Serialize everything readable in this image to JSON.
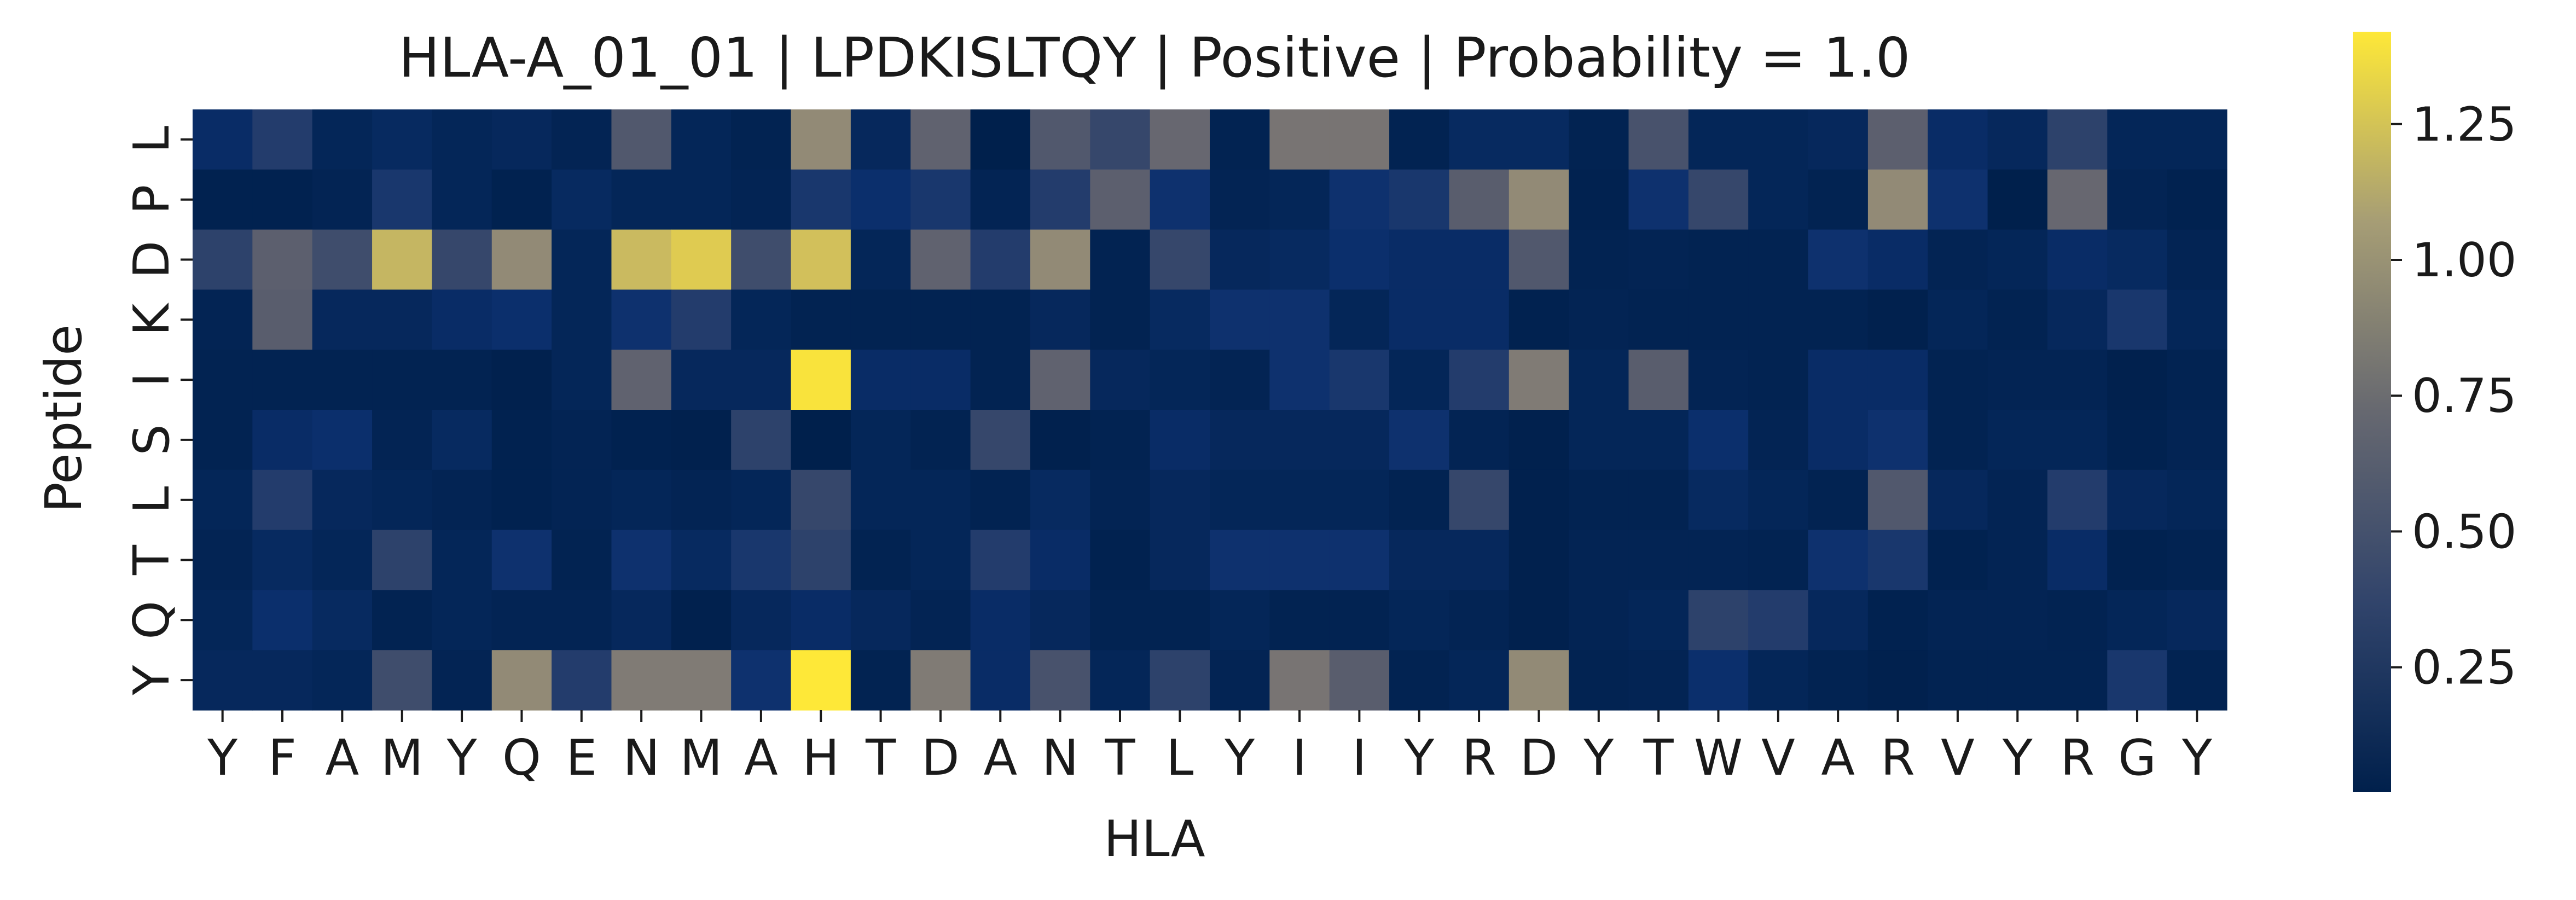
{
  "chart_data": {
    "type": "heatmap",
    "title": "HLA-A_01_01 | LPDKISLTQY | Positive | Probability = 1.0",
    "xlabel": "HLA",
    "ylabel": "Peptide",
    "x_categories": [
      "Y",
      "F",
      "A",
      "M",
      "Y",
      "Q",
      "E",
      "N",
      "M",
      "A",
      "H",
      "T",
      "D",
      "A",
      "N",
      "T",
      "L",
      "Y",
      "I",
      "I",
      "Y",
      "R",
      "D",
      "Y",
      "T",
      "W",
      "V",
      "A",
      "R",
      "V",
      "Y",
      "R",
      "G",
      "Y"
    ],
    "y_categories": [
      "L",
      "P",
      "D",
      "K",
      "I",
      "S",
      "L",
      "T",
      "Q",
      "Y"
    ],
    "colormap": "cividis",
    "vmin": 0.02,
    "vmax": 1.42,
    "colorbar_ticks": [
      0.25,
      0.5,
      0.75,
      1.0,
      1.25
    ],
    "colorbar_tick_labels": [
      "0.25",
      "0.50",
      "0.75",
      "1.00",
      "1.25"
    ],
    "values": [
      [
        0.15,
        0.3,
        0.08,
        0.12,
        0.08,
        0.1,
        0.06,
        0.55,
        0.08,
        0.05,
        0.95,
        0.1,
        0.65,
        0.02,
        0.55,
        0.4,
        0.7,
        0.05,
        0.8,
        0.8,
        0.05,
        0.12,
        0.12,
        0.05,
        0.5,
        0.08,
        0.08,
        0.1,
        0.62,
        0.15,
        0.1,
        0.35,
        0.08,
        0.08
      ],
      [
        0.04,
        0.04,
        0.06,
        0.25,
        0.08,
        0.04,
        0.12,
        0.08,
        0.08,
        0.06,
        0.25,
        0.18,
        0.25,
        0.06,
        0.3,
        0.62,
        0.2,
        0.06,
        0.08,
        0.2,
        0.25,
        0.6,
        0.95,
        0.04,
        0.2,
        0.4,
        0.08,
        0.05,
        0.95,
        0.2,
        0.02,
        0.7,
        0.06,
        0.04
      ],
      [
        0.35,
        0.62,
        0.45,
        1.2,
        0.4,
        0.95,
        0.08,
        1.22,
        1.3,
        0.45,
        1.25,
        0.08,
        0.65,
        0.3,
        0.95,
        0.05,
        0.4,
        0.1,
        0.12,
        0.18,
        0.15,
        0.15,
        0.55,
        0.05,
        0.06,
        0.05,
        0.05,
        0.2,
        0.15,
        0.06,
        0.08,
        0.15,
        0.12,
        0.06
      ],
      [
        0.06,
        0.6,
        0.1,
        0.1,
        0.15,
        0.18,
        0.08,
        0.2,
        0.3,
        0.08,
        0.05,
        0.05,
        0.05,
        0.05,
        0.1,
        0.05,
        0.12,
        0.2,
        0.2,
        0.08,
        0.15,
        0.15,
        0.04,
        0.06,
        0.05,
        0.05,
        0.05,
        0.05,
        0.03,
        0.08,
        0.05,
        0.1,
        0.25,
        0.08
      ],
      [
        0.05,
        0.05,
        0.05,
        0.05,
        0.05,
        0.03,
        0.08,
        0.65,
        0.1,
        0.1,
        1.4,
        0.15,
        0.15,
        0.05,
        0.65,
        0.1,
        0.08,
        0.06,
        0.2,
        0.25,
        0.08,
        0.3,
        0.85,
        0.08,
        0.6,
        0.06,
        0.05,
        0.15,
        0.15,
        0.05,
        0.06,
        0.06,
        0.03,
        0.05
      ],
      [
        0.05,
        0.15,
        0.18,
        0.06,
        0.12,
        0.04,
        0.06,
        0.04,
        0.03,
        0.35,
        0.02,
        0.08,
        0.05,
        0.4,
        0.03,
        0.05,
        0.15,
        0.1,
        0.1,
        0.1,
        0.2,
        0.06,
        0.03,
        0.08,
        0.08,
        0.18,
        0.06,
        0.15,
        0.2,
        0.05,
        0.08,
        0.08,
        0.04,
        0.06
      ],
      [
        0.08,
        0.3,
        0.1,
        0.08,
        0.06,
        0.04,
        0.06,
        0.08,
        0.06,
        0.08,
        0.4,
        0.08,
        0.08,
        0.05,
        0.12,
        0.06,
        0.1,
        0.08,
        0.08,
        0.08,
        0.05,
        0.4,
        0.03,
        0.05,
        0.05,
        0.12,
        0.08,
        0.05,
        0.55,
        0.1,
        0.06,
        0.3,
        0.1,
        0.08
      ],
      [
        0.06,
        0.12,
        0.08,
        0.35,
        0.08,
        0.2,
        0.05,
        0.2,
        0.12,
        0.25,
        0.35,
        0.05,
        0.08,
        0.3,
        0.15,
        0.04,
        0.1,
        0.2,
        0.2,
        0.2,
        0.1,
        0.1,
        0.03,
        0.06,
        0.06,
        0.06,
        0.05,
        0.2,
        0.25,
        0.04,
        0.06,
        0.15,
        0.04,
        0.05
      ],
      [
        0.08,
        0.18,
        0.12,
        0.05,
        0.08,
        0.06,
        0.06,
        0.1,
        0.03,
        0.1,
        0.15,
        0.1,
        0.06,
        0.15,
        0.1,
        0.05,
        0.05,
        0.08,
        0.05,
        0.05,
        0.08,
        0.06,
        0.03,
        0.06,
        0.08,
        0.35,
        0.3,
        0.1,
        0.04,
        0.06,
        0.06,
        0.05,
        0.08,
        0.1
      ],
      [
        0.1,
        0.1,
        0.08,
        0.45,
        0.06,
        0.95,
        0.3,
        0.85,
        0.85,
        0.2,
        1.42,
        0.05,
        0.85,
        0.15,
        0.5,
        0.08,
        0.35,
        0.06,
        0.8,
        0.6,
        0.05,
        0.08,
        0.95,
        0.05,
        0.06,
        0.18,
        0.08,
        0.05,
        0.03,
        0.05,
        0.05,
        0.05,
        0.25,
        0.05
      ]
    ]
  }
}
